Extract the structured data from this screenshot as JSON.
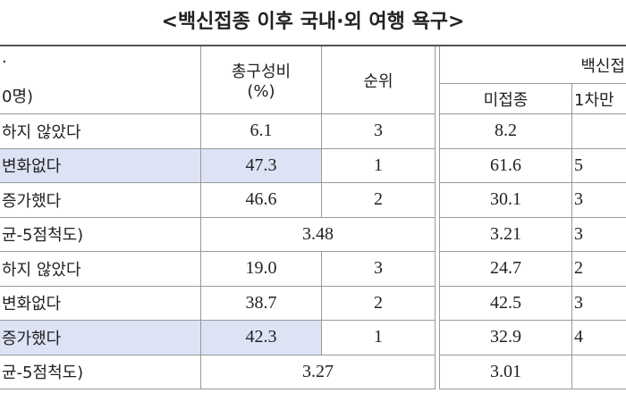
{
  "title": "<백신접종 이후 국내·외 여행 욕구>",
  "header": {
    "group": [
      "·",
      "0명)"
    ],
    "share": [
      "총구성비",
      "(%)"
    ],
    "rank": "순위",
    "vaccine": "백신접",
    "unvaccinated": "미접종",
    "first_dose": "1차만"
  },
  "rows": [
    {
      "label": "하지 않았다",
      "share": "6.1",
      "rank": "3",
      "unvaccinated": "8.2"
    },
    {
      "label": "변화없다",
      "share": "47.3",
      "rank": "1",
      "unvaccinated": "61.6",
      "first_dose": "5",
      "highlight": true
    },
    {
      "label": "증가했다",
      "share": "46.6",
      "rank": "2",
      "unvaccinated": "30.1",
      "first_dose": "3"
    },
    {
      "label": "균-5점척도)",
      "score": "3.48",
      "unvaccinated": "3.21",
      "first_dose": "3"
    },
    {
      "label": "하지 않았다",
      "share": "19.0",
      "rank": "3",
      "unvaccinated": "24.7",
      "first_dose": "2"
    },
    {
      "label": "변화없다",
      "share": "38.7",
      "rank": "2",
      "unvaccinated": "42.5",
      "first_dose": "3"
    },
    {
      "label": "증가했다",
      "share": "42.3",
      "rank": "1",
      "unvaccinated": "32.9",
      "first_dose": "4",
      "highlight": true
    },
    {
      "label": "균-5점척도)",
      "score": "3.27",
      "unvaccinated": "3.01"
    }
  ]
}
